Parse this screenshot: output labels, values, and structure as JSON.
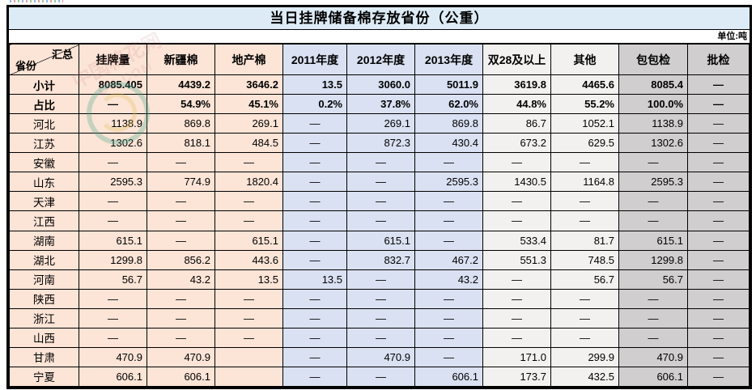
{
  "title": "当日挂牌储备棉存放省份（公重）",
  "unit_label": "单位:吨",
  "corner": {
    "top": "汇总",
    "bottom": "省份"
  },
  "columns": [
    {
      "label": "挂牌量",
      "group": "peach"
    },
    {
      "label": "新疆棉",
      "group": "peach"
    },
    {
      "label": "地产棉",
      "group": "peach"
    },
    {
      "label": "2011年度",
      "group": "blue"
    },
    {
      "label": "2012年度",
      "group": "blue"
    },
    {
      "label": "2013年度",
      "group": "blue"
    },
    {
      "label": "双28及以上",
      "group": "light"
    },
    {
      "label": "其他",
      "group": "light"
    },
    {
      "label": "包包检",
      "group": "gray"
    },
    {
      "label": "批检",
      "group": "gray"
    }
  ],
  "label_column_group": "peach",
  "rows": [
    {
      "label": "小计",
      "bold": true,
      "cells": [
        "8085.405",
        "4439.2",
        "3646.2",
        "13.5",
        "3060.0",
        "5011.9",
        "3619.8",
        "4465.6",
        "8085.4",
        "—"
      ]
    },
    {
      "label": "占比",
      "bold": true,
      "cells": [
        "—",
        "54.9%",
        "45.1%",
        "0.2%",
        "37.8%",
        "62.0%",
        "44.8%",
        "55.2%",
        "100.0%",
        "—"
      ]
    },
    {
      "label": "河北",
      "bold": false,
      "cells": [
        "1138.9",
        "869.8",
        "269.1",
        "—",
        "269.1",
        "869.8",
        "86.7",
        "1052.1",
        "1138.9",
        "—"
      ]
    },
    {
      "label": "江苏",
      "bold": false,
      "cells": [
        "1302.6",
        "818.1",
        "484.5",
        "—",
        "872.3",
        "430.4",
        "673.2",
        "629.5",
        "1302.6",
        "—"
      ]
    },
    {
      "label": "安徽",
      "bold": false,
      "cells": [
        "—",
        "—",
        "—",
        "—",
        "—",
        "—",
        "—",
        "—",
        "—",
        "—"
      ]
    },
    {
      "label": "山东",
      "bold": false,
      "cells": [
        "2595.3",
        "774.9",
        "1820.4",
        "—",
        "—",
        "2595.3",
        "1430.5",
        "1164.8",
        "2595.3",
        "—"
      ]
    },
    {
      "label": "天津",
      "bold": false,
      "cells": [
        "—",
        "—",
        "—",
        "—",
        "—",
        "—",
        "—",
        "—",
        "—",
        "—"
      ]
    },
    {
      "label": "江西",
      "bold": false,
      "cells": [
        "—",
        "—",
        "—",
        "—",
        "—",
        "—",
        "—",
        "—",
        "—",
        "—"
      ]
    },
    {
      "label": "湖南",
      "bold": false,
      "cells": [
        "615.1",
        "—",
        "615.1",
        "—",
        "615.1",
        "—",
        "533.4",
        "81.7",
        "615.1",
        "—"
      ]
    },
    {
      "label": "湖北",
      "bold": false,
      "cells": [
        "1299.8",
        "856.2",
        "443.6",
        "—",
        "832.7",
        "467.2",
        "551.3",
        "748.5",
        "1299.8",
        "—"
      ]
    },
    {
      "label": "河南",
      "bold": false,
      "cells": [
        "56.7",
        "43.2",
        "13.5",
        "13.5",
        "—",
        "43.2",
        "—",
        "56.7",
        "56.7",
        "—"
      ]
    },
    {
      "label": "陕西",
      "bold": false,
      "cells": [
        "—",
        "—",
        "—",
        "—",
        "—",
        "—",
        "—",
        "—",
        "—",
        "—"
      ]
    },
    {
      "label": "浙江",
      "bold": false,
      "cells": [
        "—",
        "—",
        "—",
        "—",
        "—",
        "—",
        "—",
        "—",
        "—",
        "—"
      ]
    },
    {
      "label": "山西",
      "bold": false,
      "cells": [
        "—",
        "—",
        "—",
        "—",
        "—",
        "—",
        "—",
        "—",
        "—",
        "—"
      ]
    },
    {
      "label": "甘肃",
      "bold": false,
      "cells": [
        "470.9",
        "470.9",
        "",
        "—",
        "470.9",
        "—",
        "171.0",
        "299.9",
        "470.9",
        "—"
      ]
    },
    {
      "label": "宁夏",
      "bold": false,
      "cells": [
        "606.1",
        "606.1",
        "",
        "—",
        "—",
        "606.1",
        "173.7",
        "432.5",
        "606.1",
        "—"
      ]
    }
  ],
  "colors": {
    "peach": "#FCE4D6",
    "blue": "#D9E1F2",
    "light": "#F2F1EF",
    "gray": "#D0CECE",
    "title_bg": "#DDEBF7",
    "border": "#000000"
  },
  "watermark": {
    "line1": "中国棉花网",
    "line2": "ON.COM"
  }
}
